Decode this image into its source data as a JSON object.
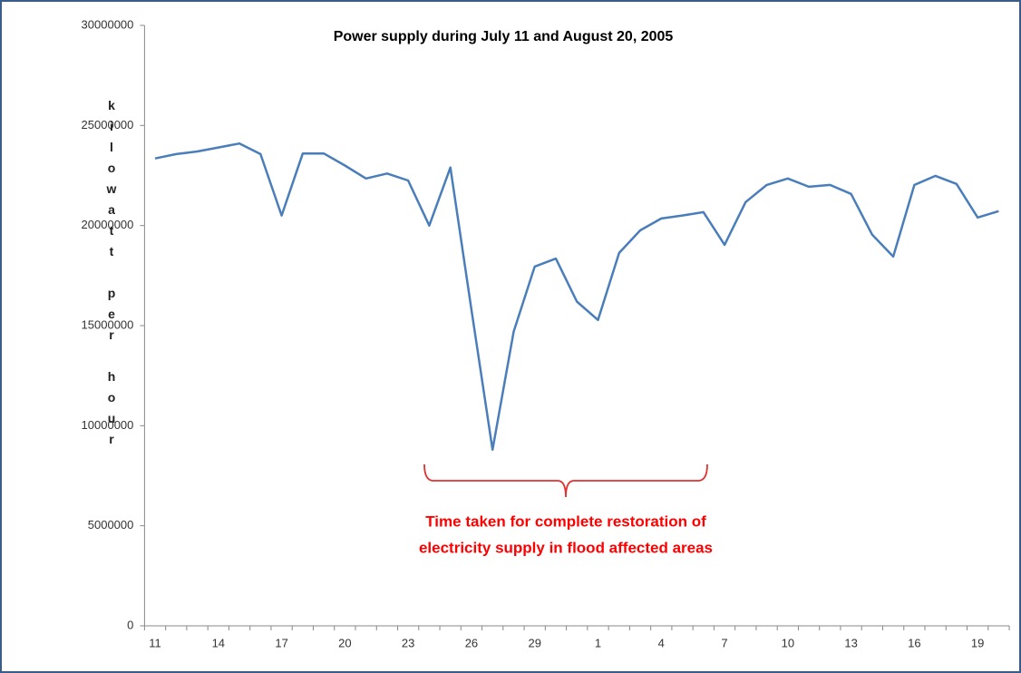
{
  "chart_data": {
    "type": "line",
    "title": "Power supply during July 11 and August 20, 2005",
    "y_label": "kilowatt per hour",
    "annotation": [
      "Time taken for complete restoration of",
      "electricity supply in flood affected areas"
    ],
    "categories": [
      "11",
      null,
      null,
      "14",
      null,
      null,
      "17",
      null,
      null,
      "20",
      null,
      null,
      "23",
      null,
      null,
      "26",
      null,
      null,
      "29",
      null,
      null,
      "1",
      null,
      null,
      "4",
      null,
      null,
      "7",
      null,
      null,
      "10",
      null,
      null,
      "13",
      null,
      null,
      "16",
      null,
      null,
      "19",
      null
    ],
    "series": [
      {
        "name": "Power supply",
        "color": "#4a7ebb",
        "values": [
          23350000,
          23570000,
          23700000,
          23900000,
          24100000,
          23570000,
          20500000,
          23600000,
          23600000,
          23000000,
          22350000,
          22600000,
          22250000,
          20000000,
          22900000,
          15800000,
          8800000,
          14700000,
          17950000,
          18350000,
          16200000,
          15280000,
          18630000,
          19760000,
          20350000,
          20500000,
          20670000,
          19040000,
          21170000,
          22030000,
          22350000,
          21940000,
          22030000,
          21580000,
          19540000,
          18450000,
          22030000,
          22480000,
          22080000,
          20400000,
          20720000
        ]
      }
    ],
    "ylim": [
      0,
      30000000
    ],
    "yticks": [
      0,
      5000000,
      10000000,
      15000000,
      20000000,
      25000000,
      30000000
    ],
    "grid": false,
    "annotation_color": "#ff0000"
  }
}
